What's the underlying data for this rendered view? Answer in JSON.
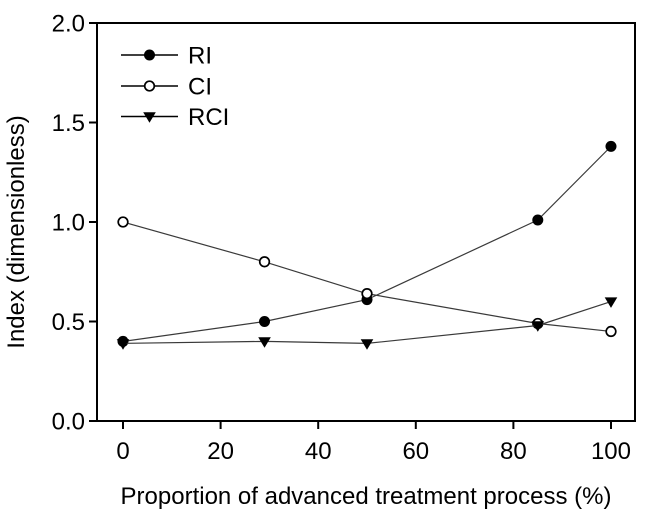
{
  "figure": {
    "background": "#ffffff",
    "foreground": "#000000"
  },
  "chart_data": {
    "type": "line",
    "title": "",
    "xlabel": "Proportion of advanced treatment process (%)",
    "ylabel": "Index (dimensionless)",
    "x": [
      0,
      29,
      50,
      85,
      100
    ],
    "series": [
      {
        "name": "RI",
        "marker": "filled-circle",
        "values": [
          0.4,
          0.5,
          0.61,
          1.01,
          1.38
        ]
      },
      {
        "name": "CI",
        "marker": "open-circle",
        "values": [
          1.0,
          0.8,
          0.64,
          0.49,
          0.45
        ]
      },
      {
        "name": "RCI",
        "marker": "filled-triangle-down",
        "values": [
          0.39,
          0.4,
          0.39,
          0.48,
          0.6
        ]
      }
    ],
    "xlim": [
      -5.33,
      104.92
    ],
    "ylim": [
      0,
      2
    ],
    "xticks": [
      0,
      20,
      40,
      60,
      80,
      100
    ],
    "xtick_labels": [
      "0",
      "20",
      "40",
      "60",
      "80",
      "100"
    ],
    "yticks": [
      0,
      0.5,
      1.0,
      1.5,
      2.0
    ],
    "ytick_labels": [
      "0.0",
      "0.5",
      "1.0",
      "1.5",
      "2.0"
    ],
    "legend": {
      "position": "top-left",
      "entries": [
        "RI",
        "CI",
        "RCI"
      ]
    },
    "grid": false,
    "line_color": "#3a3a3a",
    "marker_color": "#000000",
    "frame_color": "#000000"
  }
}
